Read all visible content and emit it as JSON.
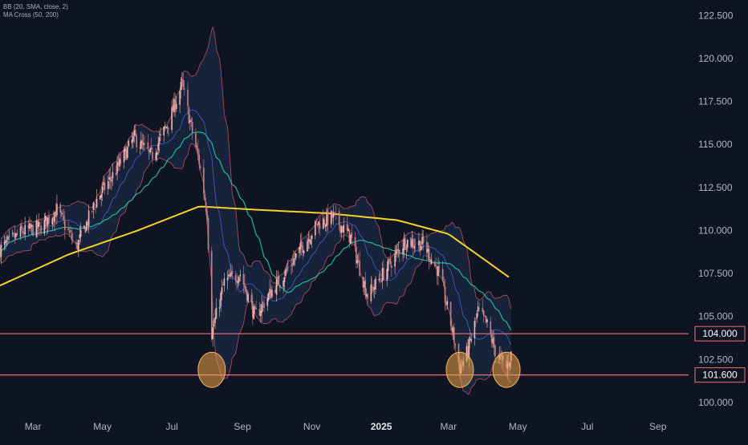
{
  "legend": {
    "bb": "BB (20, SMA, close, 2)",
    "ma": "MA Cross (50, 200)"
  },
  "colors": {
    "background": "#0f1422",
    "bull": "#f3b6b1",
    "bear": "#c77f86",
    "bb_band": "#b5515a",
    "bb_basis": "#3f62c9",
    "bb_fill": "#1a2a44",
    "ma50": "#22b79a",
    "ma200": "#f5d327",
    "hline": "#f26e6e",
    "circle_fill": "#f1a24b",
    "circle_stroke": "#f5b35c",
    "axis_text": "#b2b5be",
    "price_label_bg": "#0f1422",
    "price_label_text": "#ffffff"
  },
  "chart_data": {
    "type": "candlestick",
    "y_axis": {
      "ticks": [
        122.5,
        120.0,
        117.5,
        115.0,
        112.5,
        110.0,
        107.5,
        105.0,
        102.5,
        100.0
      ],
      "tick_labels": [
        "122.500",
        "120.000",
        "117.500",
        "115.000",
        "112.500",
        "110.000",
        "107.500",
        "105.000",
        "102.500",
        "100.000"
      ],
      "ylim": [
        99.3,
        123.4
      ],
      "position": "right"
    },
    "x_axis": {
      "labels": [
        "Mar",
        "May",
        "Jul",
        "Sep",
        "Nov",
        "2025",
        "Mar",
        "May",
        "Jul",
        "Sep"
      ],
      "bold_labels": [
        "2025"
      ],
      "range": [
        "2024-02-01",
        "2025-09-28"
      ]
    },
    "horizontal_lines": [
      {
        "value": 104.0,
        "label": "104.000"
      },
      {
        "value": 101.6,
        "label": "101.600"
      }
    ],
    "highlight_circles": [
      {
        "date": "2024-08-05",
        "price": 101.9
      },
      {
        "date": "2025-03-11",
        "price": 101.9
      },
      {
        "date": "2025-04-21",
        "price": 101.9
      }
    ],
    "price_path": {
      "period": "2024-02-01 to 2025-04-25",
      "anchors": [
        [
          "2024-02-01",
          108.9
        ],
        [
          "2024-02-20",
          109.9
        ],
        [
          "2024-03-08",
          110.2
        ],
        [
          "2024-03-22",
          111.2
        ],
        [
          "2024-04-08",
          109.0
        ],
        [
          "2024-04-26",
          111.8
        ],
        [
          "2024-05-13",
          113.5
        ],
        [
          "2024-05-29",
          115.4
        ],
        [
          "2024-06-13",
          114.3
        ],
        [
          "2024-06-28",
          116.3
        ],
        [
          "2024-07-10",
          118.5
        ],
        [
          "2024-07-18",
          116.0
        ],
        [
          "2024-07-25",
          114.0
        ],
        [
          "2024-08-01",
          111.0
        ],
        [
          "2024-08-05",
          104.0
        ],
        [
          "2024-08-16",
          107.0
        ],
        [
          "2024-08-30",
          107.5
        ],
        [
          "2024-09-12",
          105.0
        ],
        [
          "2024-09-27",
          106.5
        ],
        [
          "2024-10-09",
          107.6
        ],
        [
          "2024-10-23",
          109.0
        ],
        [
          "2024-11-06",
          110.4
        ],
        [
          "2024-11-20",
          110.8
        ],
        [
          "2024-12-05",
          109.6
        ],
        [
          "2024-12-20",
          106.2
        ],
        [
          "2025-01-08",
          108.0
        ],
        [
          "2025-01-22",
          109.4
        ],
        [
          "2025-02-07",
          109.2
        ],
        [
          "2025-02-21",
          107.5
        ],
        [
          "2025-03-05",
          104.0
        ],
        [
          "2025-03-11",
          102.0
        ],
        [
          "2025-03-18",
          103.0
        ],
        [
          "2025-03-27",
          105.3
        ],
        [
          "2025-04-04",
          104.5
        ],
        [
          "2025-04-11",
          103.0
        ],
        [
          "2025-04-21",
          102.0
        ],
        [
          "2025-04-25",
          102.8
        ]
      ]
    },
    "ma200_path": [
      [
        "2024-02-01",
        106.8
      ],
      [
        "2024-04-01",
        108.6
      ],
      [
        "2024-06-01",
        110.0
      ],
      [
        "2024-07-25",
        111.4
      ],
      [
        "2024-09-15",
        111.2
      ],
      [
        "2024-11-15",
        111.0
      ],
      [
        "2025-01-15",
        110.6
      ],
      [
        "2025-03-01",
        109.8
      ],
      [
        "2025-04-25",
        107.2
      ]
    ]
  }
}
